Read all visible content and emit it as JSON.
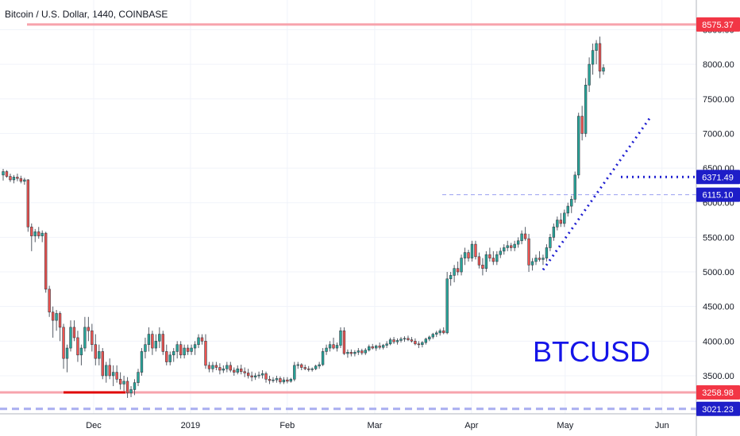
{
  "header": {
    "title": "Bitcoin / U.S. Dollar, 1440, COINBASE"
  },
  "watermark": "BTCUSD",
  "chart_data": {
    "type": "candlestick",
    "symbol": "BTCUSD",
    "interval": "1440",
    "exchange": "COINBASE",
    "y_range": [
      2950,
      8700
    ],
    "x_range": [
      "2018-11-01",
      "2019-06-12"
    ],
    "y_ticks": [
      3500,
      4000,
      4500,
      5000,
      5500,
      6000,
      6500,
      7000,
      7500,
      8000,
      8500
    ],
    "y_tick_labels": [
      "3500.00",
      "4000.00",
      "4500.00",
      "5000.00",
      "5500.00",
      "6000.00",
      "6500.00",
      "7000.00",
      "7500.00",
      "8000.00",
      "8500.00"
    ],
    "x_ticks": [
      {
        "date": "2018-12-01",
        "label": "Dec"
      },
      {
        "date": "2019-01-01",
        "label": "2019"
      },
      {
        "date": "2019-02-01",
        "label": "Feb"
      },
      {
        "date": "2019-03-01",
        "label": "Mar"
      },
      {
        "date": "2019-04-01",
        "label": "Apr"
      },
      {
        "date": "2019-05-01",
        "label": "May"
      },
      {
        "date": "2019-06-01",
        "label": "Jun"
      }
    ],
    "price_levels": [
      {
        "value": 8575.37,
        "label": "8575.37",
        "color": "#f23645",
        "style": "solid"
      },
      {
        "value": 6371.49,
        "label": "6371.49",
        "color": "#1e1ed0",
        "style": "dotted"
      },
      {
        "value": 6115.1,
        "label": "6115.10",
        "color": "#1e1ed0",
        "style": "dashed-thin"
      },
      {
        "value": 3258.98,
        "label": "3258.98",
        "color": "#f23645",
        "style": "solid"
      },
      {
        "value": 3021.23,
        "label": "3021.23",
        "color": "#1e1ed0",
        "style": "dashed"
      }
    ],
    "drawings": [
      {
        "type": "trendline",
        "color": "#1e1ed0",
        "style": "dotted",
        "from": [
          "2019-04-25",
          5030
        ],
        "to": [
          "2019-05-30",
          7250
        ]
      },
      {
        "type": "horizontal-ray",
        "color": "#1e1ed0",
        "style": "dotted",
        "from": [
          "2019-05-15",
          6371.49
        ],
        "to": [
          "2019-06-12",
          6371.49
        ]
      },
      {
        "type": "segment",
        "color": "#e00000",
        "style": "solid",
        "from": [
          "2018-11-20",
          3258.98
        ],
        "to": [
          "2018-12-16",
          3258.98
        ]
      }
    ],
    "candles": [
      [
        6400,
        6490,
        6320,
        6450
      ],
      [
        6450,
        6470,
        6360,
        6380
      ],
      [
        6380,
        6420,
        6300,
        6330
      ],
      [
        6330,
        6400,
        6280,
        6370
      ],
      [
        6370,
        6420,
        6310,
        6350
      ],
      [
        6350,
        6390,
        6280,
        6310
      ],
      [
        6310,
        6360,
        6260,
        6330
      ],
      [
        6330,
        6340,
        5580,
        5650
      ],
      [
        5650,
        5700,
        5300,
        5520
      ],
      [
        5520,
        5620,
        5430,
        5580
      ],
      [
        5580,
        5650,
        5480,
        5520
      ],
      [
        5520,
        5600,
        5430,
        5560
      ],
      [
        5560,
        5580,
        4700,
        4750
      ],
      [
        4750,
        4800,
        4350,
        4420
      ],
      [
        4420,
        4500,
        4050,
        4300
      ],
      [
        4300,
        4450,
        4150,
        4400
      ],
      [
        4400,
        4430,
        4000,
        4200
      ],
      [
        4200,
        4250,
        3600,
        3750
      ],
      [
        3750,
        3950,
        3550,
        3900
      ],
      [
        3900,
        4300,
        3850,
        4200
      ],
      [
        4200,
        4300,
        4000,
        4050
      ],
      [
        4050,
        4150,
        3700,
        3800
      ],
      [
        3800,
        3950,
        3650,
        3900
      ],
      [
        3900,
        4350,
        3850,
        4200
      ],
      [
        4200,
        4350,
        4000,
        4150
      ],
      [
        4150,
        4250,
        3850,
        3950
      ],
      [
        3950,
        4100,
        3650,
        3750
      ],
      [
        3750,
        3950,
        3650,
        3850
      ],
      [
        3850,
        3900,
        3450,
        3500
      ],
      [
        3500,
        3700,
        3400,
        3650
      ],
      [
        3650,
        3750,
        3450,
        3500
      ],
      [
        3500,
        3650,
        3350,
        3550
      ],
      [
        3550,
        3650,
        3400,
        3450
      ],
      [
        3450,
        3550,
        3300,
        3380
      ],
      [
        3380,
        3500,
        3280,
        3420
      ],
      [
        3420,
        3480,
        3180,
        3250
      ],
      [
        3250,
        3350,
        3190,
        3300
      ],
      [
        3300,
        3450,
        3220,
        3400
      ],
      [
        3400,
        3600,
        3350,
        3550
      ],
      [
        3550,
        3900,
        3500,
        3850
      ],
      [
        3850,
        4050,
        3750,
        3950
      ],
      [
        3950,
        4200,
        3850,
        4100
      ],
      [
        4100,
        4150,
        3800,
        3900
      ],
      [
        3900,
        4100,
        3850,
        4000
      ],
      [
        4000,
        4200,
        3900,
        4100
      ],
      [
        4100,
        4150,
        3800,
        3850
      ],
      [
        3850,
        3950,
        3650,
        3700
      ],
      [
        3700,
        3850,
        3650,
        3800
      ],
      [
        3800,
        3900,
        3700,
        3850
      ],
      [
        3850,
        4000,
        3750,
        3950
      ],
      [
        3950,
        4000,
        3750,
        3800
      ],
      [
        3800,
        3950,
        3750,
        3900
      ],
      [
        3900,
        3950,
        3800,
        3850
      ],
      [
        3850,
        3950,
        3800,
        3900
      ],
      [
        3900,
        4000,
        3800,
        3950
      ],
      [
        3950,
        4100,
        3900,
        4050
      ],
      [
        4050,
        4100,
        3950,
        4000
      ],
      [
        4000,
        4100,
        3600,
        3650
      ],
      [
        3650,
        3700,
        3550,
        3600
      ],
      [
        3600,
        3700,
        3550,
        3650
      ],
      [
        3650,
        3700,
        3580,
        3620
      ],
      [
        3620,
        3680,
        3520,
        3580
      ],
      [
        3580,
        3650,
        3540,
        3600
      ],
      [
        3600,
        3700,
        3550,
        3650
      ],
      [
        3650,
        3700,
        3550,
        3580
      ],
      [
        3580,
        3620,
        3500,
        3550
      ],
      [
        3550,
        3650,
        3520,
        3600
      ],
      [
        3600,
        3660,
        3520,
        3560
      ],
      [
        3560,
        3620,
        3480,
        3540
      ],
      [
        3540,
        3600,
        3460,
        3500
      ],
      [
        3500,
        3560,
        3420,
        3480
      ],
      [
        3480,
        3540,
        3440,
        3500
      ],
      [
        3500,
        3560,
        3460,
        3510
      ],
      [
        3510,
        3580,
        3460,
        3530
      ],
      [
        3530,
        3560,
        3400,
        3450
      ],
      [
        3450,
        3500,
        3380,
        3430
      ],
      [
        3430,
        3480,
        3400,
        3440
      ],
      [
        3440,
        3500,
        3400,
        3460
      ],
      [
        3460,
        3490,
        3380,
        3410
      ],
      [
        3410,
        3480,
        3380,
        3440
      ],
      [
        3440,
        3480,
        3390,
        3420
      ],
      [
        3420,
        3470,
        3400,
        3450
      ],
      [
        3450,
        3700,
        3420,
        3650
      ],
      [
        3650,
        3700,
        3600,
        3660
      ],
      [
        3660,
        3680,
        3580,
        3620
      ],
      [
        3620,
        3660,
        3580,
        3600
      ],
      [
        3600,
        3640,
        3560,
        3590
      ],
      [
        3590,
        3620,
        3560,
        3600
      ],
      [
        3600,
        3660,
        3580,
        3640
      ],
      [
        3640,
        3700,
        3600,
        3660
      ],
      [
        3660,
        3900,
        3640,
        3850
      ],
      [
        3850,
        3950,
        3800,
        3900
      ],
      [
        3900,
        4000,
        3850,
        3950
      ],
      [
        3950,
        4050,
        3880,
        3900
      ],
      [
        3900,
        3980,
        3850,
        3940
      ],
      [
        3940,
        4200,
        3900,
        4150
      ],
      [
        4150,
        4200,
        3800,
        3820
      ],
      [
        3820,
        3880,
        3760,
        3840
      ],
      [
        3840,
        3880,
        3780,
        3820
      ],
      [
        3820,
        3870,
        3780,
        3840
      ],
      [
        3840,
        3900,
        3800,
        3860
      ],
      [
        3860,
        3890,
        3800,
        3830
      ],
      [
        3830,
        3900,
        3800,
        3870
      ],
      [
        3870,
        3950,
        3850,
        3920
      ],
      [
        3920,
        3960,
        3880,
        3900
      ],
      [
        3900,
        3950,
        3860,
        3930
      ],
      [
        3930,
        3980,
        3880,
        3910
      ],
      [
        3910,
        3960,
        3880,
        3940
      ],
      [
        3940,
        4000,
        3900,
        3960
      ],
      [
        3960,
        4050,
        3940,
        4020
      ],
      [
        4020,
        4060,
        3960,
        3990
      ],
      [
        3990,
        4040,
        3950,
        4010
      ],
      [
        4010,
        4060,
        3980,
        4030
      ],
      [
        4030,
        4070,
        3990,
        4040
      ],
      [
        4040,
        4080,
        4000,
        4020
      ],
      [
        4020,
        4060,
        3980,
        4000
      ],
      [
        4000,
        4040,
        3940,
        3960
      ],
      [
        3960,
        4000,
        3900,
        3950
      ],
      [
        3950,
        4000,
        3910,
        3980
      ],
      [
        3980,
        4050,
        3950,
        4030
      ],
      [
        4030,
        4080,
        4000,
        4060
      ],
      [
        4060,
        4120,
        4030,
        4100
      ],
      [
        4100,
        4150,
        4060,
        4120
      ],
      [
        4120,
        4180,
        4080,
        4150
      ],
      [
        4150,
        4200,
        4100,
        4120
      ],
      [
        4120,
        5000,
        4100,
        4900
      ],
      [
        4900,
        5000,
        4800,
        4950
      ],
      [
        4950,
        5100,
        4850,
        5050
      ],
      [
        5050,
        5150,
        4950,
        5000
      ],
      [
        5000,
        5250,
        4950,
        5200
      ],
      [
        5200,
        5350,
        5100,
        5280
      ],
      [
        5280,
        5320,
        5150,
        5200
      ],
      [
        5200,
        5450,
        5150,
        5400
      ],
      [
        5400,
        5450,
        5180,
        5220
      ],
      [
        5220,
        5280,
        5050,
        5100
      ],
      [
        5100,
        5200,
        4950,
        5050
      ],
      [
        5050,
        5300,
        5000,
        5250
      ],
      [
        5250,
        5350,
        5150,
        5200
      ],
      [
        5200,
        5300,
        5100,
        5150
      ],
      [
        5150,
        5300,
        5100,
        5250
      ],
      [
        5250,
        5350,
        5200,
        5300
      ],
      [
        5300,
        5400,
        5250,
        5350
      ],
      [
        5350,
        5450,
        5300,
        5380
      ],
      [
        5380,
        5420,
        5300,
        5350
      ],
      [
        5350,
        5450,
        5300,
        5400
      ],
      [
        5400,
        5500,
        5350,
        5450
      ],
      [
        5450,
        5600,
        5400,
        5550
      ],
      [
        5550,
        5650,
        5450,
        5480
      ],
      [
        5480,
        5550,
        5000,
        5100
      ],
      [
        5100,
        5200,
        5020,
        5150
      ],
      [
        5150,
        5250,
        5100,
        5200
      ],
      [
        5200,
        5300,
        5150,
        5180
      ],
      [
        5180,
        5250,
        5100,
        5200
      ],
      [
        5200,
        5400,
        5150,
        5350
      ],
      [
        5350,
        5550,
        5300,
        5500
      ],
      [
        5500,
        5700,
        5450,
        5650
      ],
      [
        5650,
        5800,
        5600,
        5750
      ],
      [
        5750,
        5850,
        5650,
        5700
      ],
      [
        5700,
        5900,
        5650,
        5850
      ],
      [
        5850,
        6000,
        5800,
        5950
      ],
      [
        5950,
        6100,
        5850,
        6050
      ],
      [
        6050,
        6450,
        6000,
        6400
      ],
      [
        6400,
        7300,
        6350,
        7250
      ],
      [
        7250,
        7400,
        6900,
        7000
      ],
      [
        7000,
        7800,
        6950,
        7700
      ],
      [
        7700,
        8100,
        7600,
        8000
      ],
      [
        8000,
        8300,
        7850,
        8200
      ],
      [
        8200,
        8350,
        8000,
        8300
      ],
      [
        8300,
        8400,
        7800,
        7900
      ],
      [
        7900,
        8000,
        7850,
        7950
      ]
    ]
  }
}
